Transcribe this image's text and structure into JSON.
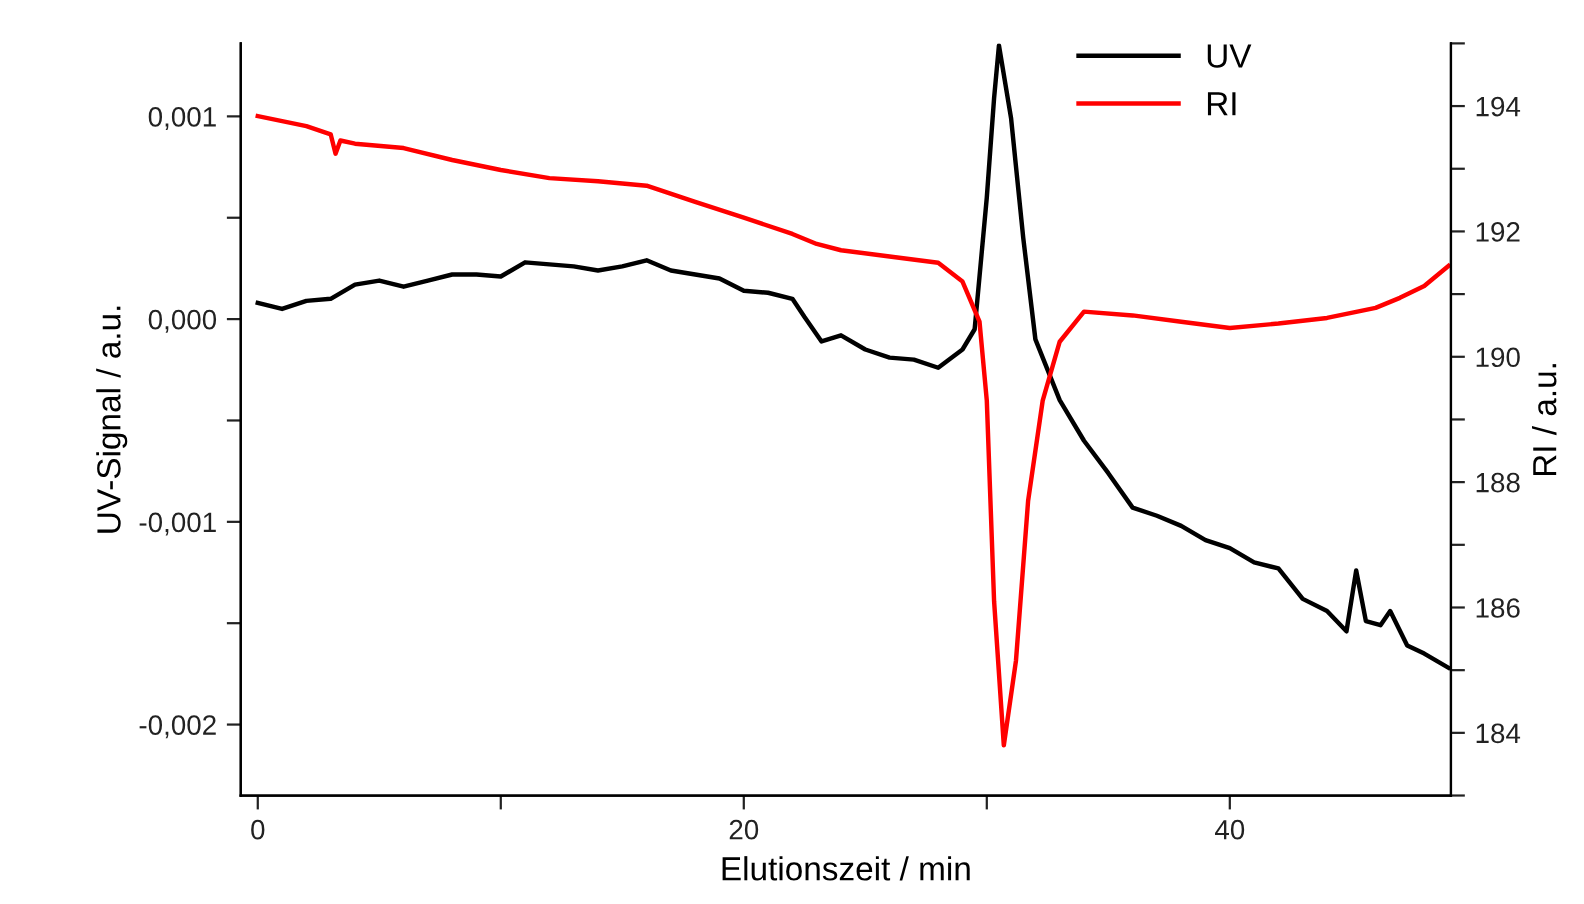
{
  "chart_data": {
    "type": "line",
    "xlabel": "Elutionszeit / min",
    "ylabel": "UV-Signal / a.u.",
    "y2label": "RI / a.u.",
    "xlim": [
      -0.7,
      49.1
    ],
    "xticks": [
      0,
      {
        "value": 10,
        "label": null
      },
      20,
      {
        "value": 30,
        "label": null
      },
      40
    ],
    "ylim": [
      -0.00235,
      0.00136
    ],
    "yticks": [
      {
        "value": -0.002,
        "label": "-0,002"
      },
      {
        "value": -0.0015,
        "label": null
      },
      {
        "value": -0.001,
        "label": "-0,001"
      },
      {
        "value": -0.0005,
        "label": null
      },
      {
        "value": 0,
        "label": "0,000"
      },
      {
        "value": 0.0005,
        "label": null
      },
      {
        "value": 0.001,
        "label": "0,001"
      }
    ],
    "y2lim": [
      183,
      195
    ],
    "y2ticks": [
      {
        "value": 183,
        "label": null
      },
      184,
      {
        "value": 185,
        "label": null
      },
      186,
      {
        "value": 187,
        "label": null
      },
      188,
      {
        "value": 189,
        "label": null
      },
      190,
      {
        "value": 191,
        "label": null
      },
      192,
      {
        "value": 193,
        "label": null
      },
      194,
      {
        "value": 195,
        "label": null
      }
    ],
    "legend": "top right",
    "grid": false,
    "marker": "none",
    "line_style": "solid",
    "series": [
      {
        "name": "UV",
        "color": "#000000",
        "x": [
          0,
          1,
          2,
          3,
          4,
          5,
          6,
          7,
          8,
          9,
          10,
          11,
          12,
          13,
          14,
          15,
          16,
          17,
          18,
          19,
          20,
          21,
          22,
          22.5,
          23.2,
          24,
          25,
          26,
          27,
          28,
          29,
          29.5,
          30,
          30.3,
          30.5,
          31,
          31.5,
          32,
          33,
          34,
          35,
          36,
          37,
          38,
          39,
          40,
          41,
          42,
          43,
          44,
          44.8,
          45.2,
          45.6,
          46.2,
          46.6,
          47.3,
          48,
          49
        ],
        "values": [
          8e-05,
          5e-05,
          9e-05,
          0.0001,
          0.00017,
          0.00019,
          0.00016,
          0.00019,
          0.00022,
          0.00022,
          0.00021,
          0.00028,
          0.00027,
          0.00026,
          0.00024,
          0.00026,
          0.00029,
          0.00024,
          0.00022,
          0.0002,
          0.00014,
          0.00013,
          0.0001,
          1e-05,
          -0.00011,
          -8e-05,
          -0.00015,
          -0.00019,
          -0.0002,
          -0.00024,
          -0.00015,
          -5e-05,
          0.0006,
          0.00109,
          0.00135,
          0.00099,
          0.0004,
          -0.0001,
          -0.0004,
          -0.0006,
          -0.00076,
          -0.00093,
          -0.00097,
          -0.00102,
          -0.00109,
          -0.00113,
          -0.0012,
          -0.00123,
          -0.00138,
          -0.00144,
          -0.00154,
          -0.00124,
          -0.00149,
          -0.00151,
          -0.00144,
          -0.00161,
          -0.00165,
          -0.00172
        ]
      },
      {
        "name": "RI",
        "color": "#ff0000",
        "axis": "y2",
        "x": [
          0,
          2,
          3,
          3.2,
          3.4,
          4,
          6,
          8,
          10,
          12,
          14,
          16,
          18,
          20,
          22,
          23,
          24,
          26,
          28,
          29,
          29.7,
          30,
          30.3,
          30.7,
          31.2,
          31.7,
          32.3,
          33,
          34,
          36,
          38,
          40,
          42,
          44,
          46,
          47,
          48,
          49
        ],
        "values": [
          193.84,
          193.68,
          193.55,
          193.24,
          193.45,
          193.4,
          193.33,
          193.14,
          192.98,
          192.85,
          192.8,
          192.73,
          192.47,
          192.22,
          191.96,
          191.8,
          191.7,
          191.6,
          191.5,
          191.2,
          190.56,
          189.3,
          186.1,
          183.8,
          185.15,
          187.7,
          189.3,
          190.24,
          190.72,
          190.66,
          190.56,
          190.46,
          190.53,
          190.62,
          190.78,
          190.94,
          191.13,
          191.45
        ]
      }
    ]
  }
}
